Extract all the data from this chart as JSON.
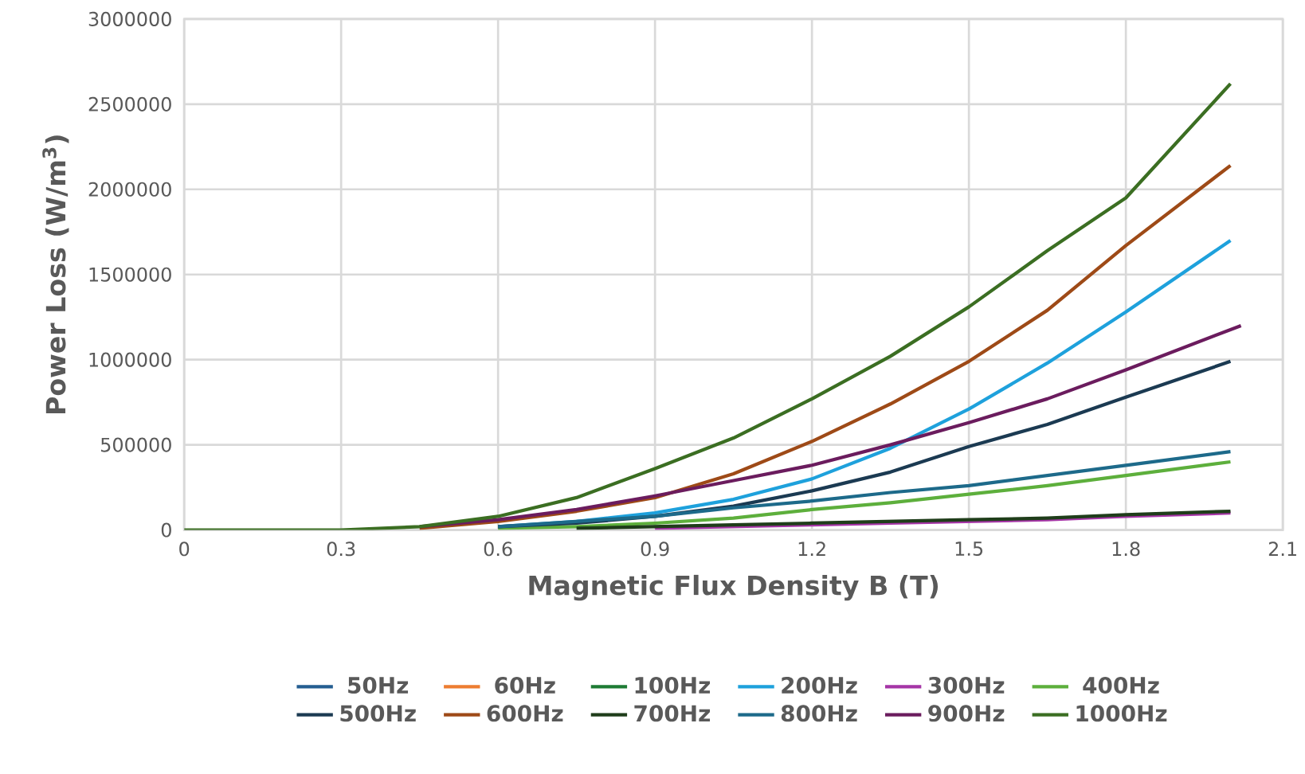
{
  "chart_data": {
    "type": "line",
    "xlabel": "Magnetic Flux Density B (T)",
    "ylabel": "Power Loss (W/m$^{3}$)",
    "x": [
      0,
      0.3,
      0.45,
      0.6,
      0.75,
      0.9,
      1.05,
      1.2,
      1.35,
      1.5,
      1.65,
      1.8,
      2.0
    ],
    "series": [
      {
        "name": "50Hz",
        "color": "#255e91",
        "values": [
          null,
          null,
          null,
          null,
          null,
          null,
          null,
          null,
          null,
          null,
          null,
          null,
          null
        ]
      },
      {
        "name": "60Hz",
        "color": "#ed7d31",
        "values": [
          null,
          null,
          null,
          null,
          null,
          null,
          null,
          null,
          null,
          null,
          null,
          null,
          null
        ]
      },
      {
        "name": "100Hz",
        "color": "#1e7b34",
        "values": [
          null,
          null,
          null,
          null,
          null,
          null,
          null,
          null,
          null,
          null,
          null,
          null,
          null
        ]
      },
      {
        "name": "200Hz",
        "color": "#1ea1dc",
        "values": [
          null,
          null,
          null,
          20000,
          50000,
          100000,
          180000,
          300000,
          480000,
          710000,
          980000,
          1280000,
          1700000
        ]
      },
      {
        "name": "300Hz",
        "color": "#a535a6",
        "values": [
          null,
          null,
          null,
          null,
          null,
          10000,
          20000,
          30000,
          40000,
          50000,
          60000,
          80000,
          100000
        ]
      },
      {
        "name": "400Hz",
        "color": "#5daf3c",
        "values": [
          null,
          null,
          null,
          10000,
          20000,
          40000,
          70000,
          120000,
          160000,
          210000,
          260000,
          320000,
          400000
        ]
      },
      {
        "name": "500Hz",
        "color": "#1b3a52",
        "values": [
          null,
          null,
          null,
          20000,
          40000,
          80000,
          140000,
          230000,
          340000,
          490000,
          620000,
          780000,
          990000
        ]
      },
      {
        "name": "600Hz",
        "color": "#9e4a17",
        "values": [
          null,
          null,
          10000,
          50000,
          110000,
          190000,
          330000,
          520000,
          740000,
          990000,
          1290000,
          1670000,
          2140000
        ]
      },
      {
        "name": "700Hz",
        "color": "#1f3d1a",
        "values": [
          null,
          null,
          null,
          null,
          10000,
          20000,
          30000,
          40000,
          50000,
          60000,
          70000,
          90000,
          110000
        ]
      },
      {
        "name": "800Hz",
        "color": "#1d6a8a",
        "values": [
          null,
          null,
          null,
          20000,
          50000,
          80000,
          130000,
          170000,
          220000,
          260000,
          320000,
          380000,
          460000
        ]
      },
      {
        "name": "900Hz",
        "color": "#6b1c5e",
        "x": [
          0.45,
          0.6,
          0.75,
          0.9,
          1.05,
          1.2,
          1.35,
          1.5,
          1.65,
          1.8,
          2.02
        ],
        "values": [
          20000,
          60000,
          120000,
          200000,
          290000,
          380000,
          500000,
          630000,
          770000,
          940000,
          1200000
        ]
      },
      {
        "name": "1000Hz",
        "color": "#3b6e22",
        "values": [
          0,
          0,
          20000,
          80000,
          190000,
          360000,
          540000,
          770000,
          1020000,
          1310000,
          1640000,
          1950000,
          2620000
        ]
      }
    ],
    "xlim": [
      0,
      2.1
    ],
    "xticks": [
      0,
      0.3,
      0.6,
      0.9,
      1.2,
      1.5,
      1.8,
      2.1
    ],
    "ylim": [
      0,
      3000000
    ],
    "yticks": [
      0,
      500000,
      1000000,
      1500000,
      2000000,
      2500000,
      3000000
    ],
    "grid": true,
    "legend": "bottom",
    "line_style": "solid"
  }
}
